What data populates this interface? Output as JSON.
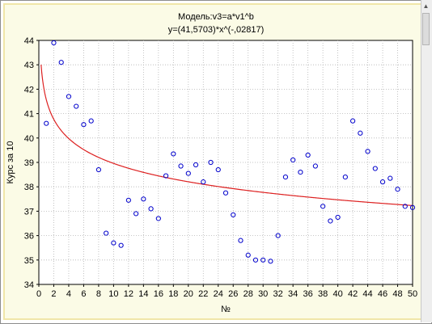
{
  "chart_data": {
    "type": "scatter",
    "title": "Модель:v3=a*v1^b",
    "subtitle": "y=(41,5703)*x^(-,02817)",
    "xlabel": "№",
    "ylabel": "Курс за 10",
    "xlim": [
      0,
      50
    ],
    "ylim": [
      34,
      44
    ],
    "x_ticks": [
      "0",
      "2",
      "4",
      "6",
      "8",
      "10",
      "12",
      "14",
      "16",
      "18",
      "20",
      "22",
      "24",
      "26",
      "28",
      "30",
      "32",
      "34",
      "36",
      "38",
      "40",
      "42",
      "44",
      "46",
      "48",
      "50"
    ],
    "y_ticks": [
      "34",
      "35",
      "36",
      "37",
      "38",
      "39",
      "40",
      "41",
      "42",
      "43",
      "44"
    ],
    "grid": true,
    "fit": {
      "a": 41.5703,
      "b": -0.02817
    },
    "colors": {
      "points": "#0000cc",
      "fit_line": "#dd2020",
      "grid": "#b4b4b4"
    },
    "series": [
      {
        "x": [
          1,
          2,
          3,
          4,
          5,
          6,
          7,
          8,
          9,
          10,
          11,
          12,
          13,
          14,
          15,
          16,
          17,
          18,
          19,
          20,
          21,
          22,
          23,
          24,
          25,
          26,
          27,
          28,
          29,
          30,
          31,
          32,
          33,
          34,
          35,
          36,
          37,
          38,
          39,
          40,
          41,
          42,
          43,
          44,
          45,
          46,
          47,
          48,
          49,
          50
        ],
        "y": [
          40.6,
          43.9,
          43.1,
          41.7,
          41.3,
          40.55,
          40.7,
          38.7,
          36.1,
          35.7,
          35.6,
          37.45,
          36.9,
          37.5,
          37.1,
          36.7,
          38.45,
          39.35,
          38.85,
          38.55,
          38.9,
          38.2,
          39.0,
          38.7,
          37.75,
          36.85,
          35.8,
          35.2,
          35.0,
          35.0,
          34.95,
          36.0,
          38.4,
          39.1,
          38.6,
          39.3,
          38.85,
          37.2,
          36.6,
          36.75,
          38.4,
          40.7,
          40.2,
          39.45,
          38.75,
          38.2,
          38.35,
          37.9,
          37.2,
          37.15
        ]
      }
    ]
  }
}
